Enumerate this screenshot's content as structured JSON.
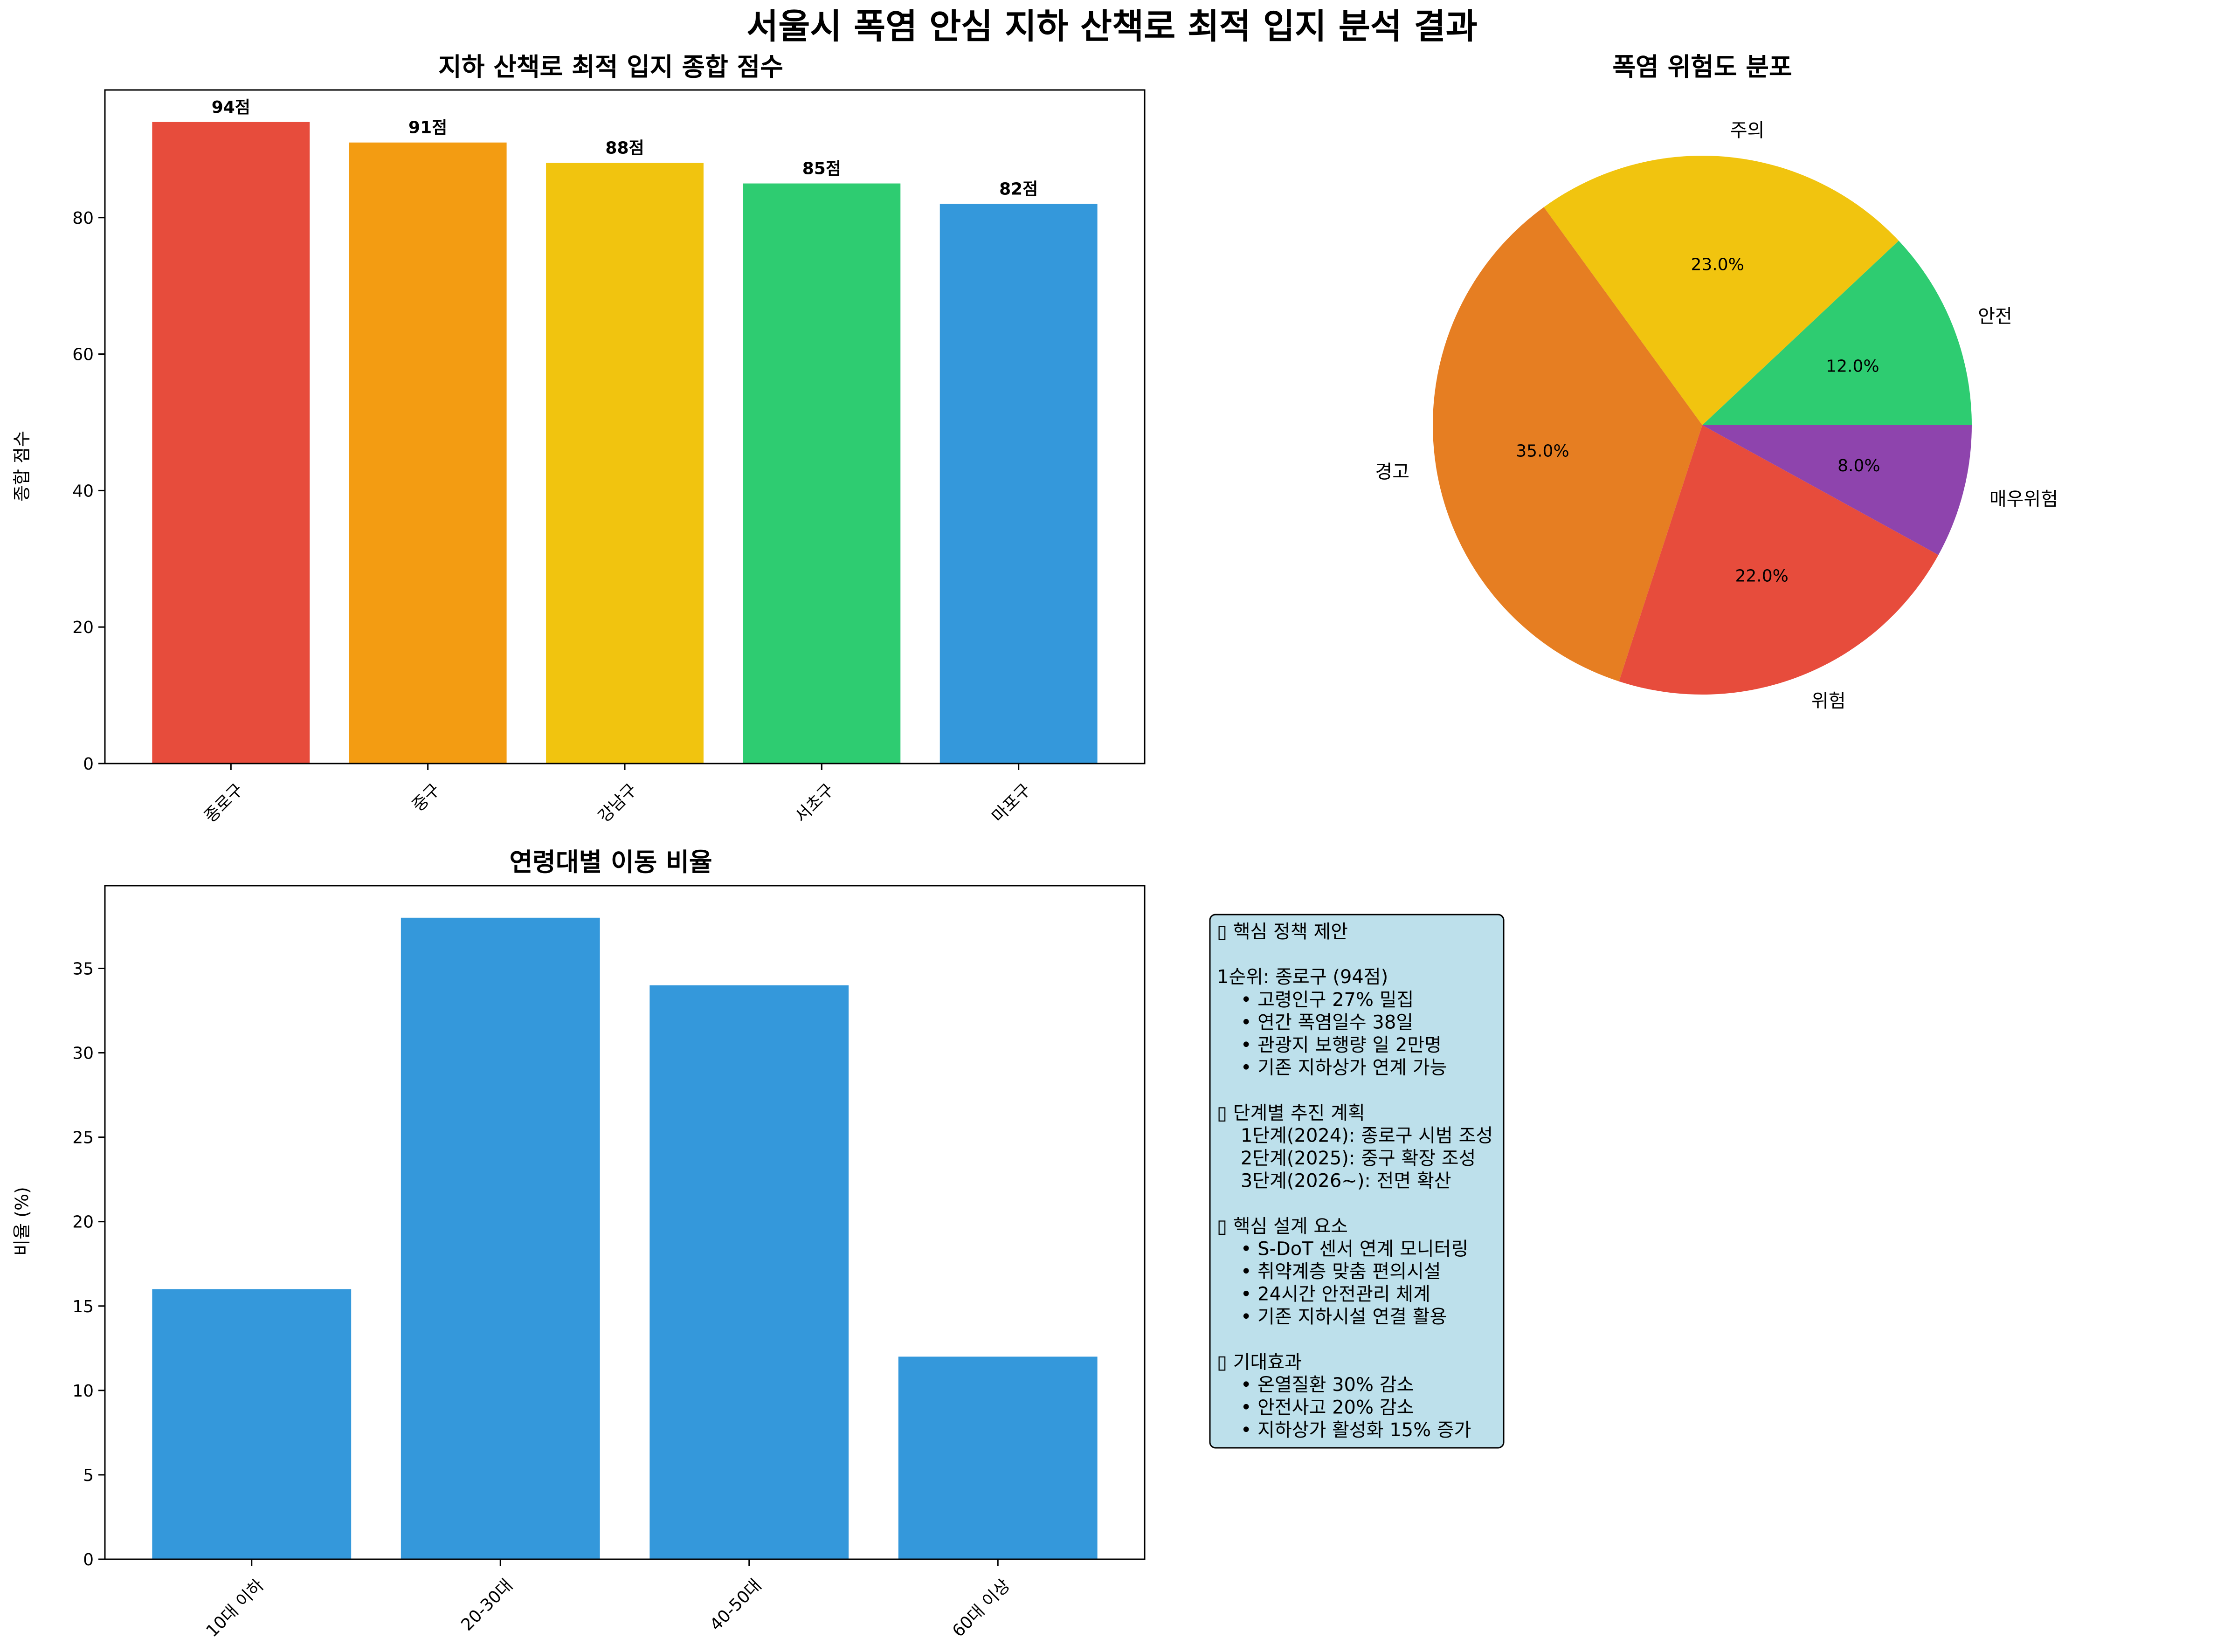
{
  "figure": {
    "title": "서울시 폭염 안심 지하 산책로 최적 입지 분석 결과",
    "colors": {
      "red": "#E74C3C",
      "orange": "#F39C12",
      "yellow": "#F1C40F",
      "green": "#2ECC71",
      "blue": "#3498DB",
      "dark_orange": "#E67E22",
      "purple": "#8E44AD",
      "note_bg": "#BDE0EB"
    }
  },
  "chart_data": [
    {
      "type": "bar",
      "title": "지하 산책로 최적 입지 종합 점수",
      "categories": [
        "종로구",
        "중구",
        "강남구",
        "서초구",
        "마포구"
      ],
      "values": [
        94,
        91,
        88,
        85,
        82
      ],
      "data_labels": [
        "94점",
        "91점",
        "88점",
        "85점",
        "82점"
      ],
      "colors": [
        "#E74C3C",
        "#F39C12",
        "#F1C40F",
        "#2ECC71",
        "#3498DB"
      ],
      "xlabel": "",
      "ylabel": "종합 점수",
      "ylim": [
        0,
        98.7
      ],
      "yticks": [
        0,
        20,
        40,
        60,
        80
      ],
      "x_tick_rotation": 45,
      "grid": false
    },
    {
      "type": "pie",
      "title": "폭염 위험도 분포",
      "labels": [
        "안전",
        "주의",
        "경고",
        "위험",
        "매우위험"
      ],
      "values": [
        12.0,
        23.0,
        35.0,
        22.0,
        8.0
      ],
      "pct_labels": [
        "12.0%",
        "23.0%",
        "35.0%",
        "22.0%",
        "8.0%"
      ],
      "colors": [
        "#2ECC71",
        "#F1C40F",
        "#E67E22",
        "#E74C3C",
        "#8E44AD"
      ],
      "start_angle": 0,
      "direction": "counterclockwise"
    },
    {
      "type": "bar",
      "title": "연령대별 이동 비율",
      "categories": [
        "10대 이하",
        "20-30대",
        "40-50대",
        "60대 이상"
      ],
      "values": [
        16,
        38,
        34,
        12
      ],
      "colors": [
        "#3498DB",
        "#3498DB",
        "#3498DB",
        "#3498DB"
      ],
      "xlabel": "",
      "ylabel": "비율 (%)",
      "ylim": [
        0,
        39.9
      ],
      "yticks": [
        0,
        5,
        10,
        15,
        20,
        25,
        30,
        35
      ],
      "x_tick_rotation": 45,
      "grid": false
    }
  ],
  "policy_box": {
    "lines": [
      "▯ 핵심 정책 제안",
      "",
      "1순위: 종로구 (94점)",
      "  • 고령인구 27% 밀집",
      "  • 연간 폭염일수 38일",
      "  • 관광지 보행량 일 2만명",
      "  • 기존 지하상가 연계 가능",
      "",
      "▯ 단계별 추진 계획",
      "  1단계(2024): 종로구 시범 조성",
      "  2단계(2025): 중구 확장 조성",
      "  3단계(2026~): 전면 확산",
      "",
      "▯ 핵심 설계 요소",
      "  • S-DoT 센서 연계 모니터링",
      "  • 취약계층 맞춤 편의시설",
      "  • 24시간 안전관리 체계",
      "  • 기존 지하시설 연결 활용",
      "",
      "▯ 기대효과",
      "  • 온열질환 30% 감소",
      "  • 안전사고 20% 감소",
      "  • 지하상가 활성화 15% 증가"
    ]
  }
}
